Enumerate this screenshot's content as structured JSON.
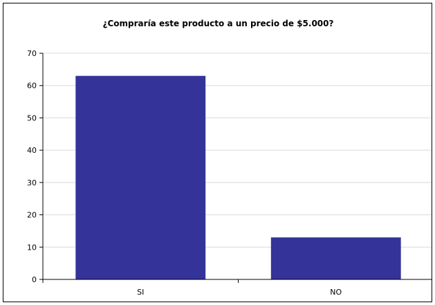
{
  "chart_data": {
    "type": "bar",
    "title": "¿Compraría este producto a un precio de $5.000?",
    "xlabel": "",
    "ylabel": "",
    "categories": [
      "SI",
      "NO"
    ],
    "values": [
      63,
      13
    ],
    "ylim": [
      0,
      70
    ],
    "yticks": [
      "0",
      "10",
      "20",
      "30",
      "40",
      "50",
      "60",
      "70"
    ],
    "grid": true,
    "legend": "none",
    "bar_color": "#333399",
    "grid_color": "#d9d9d9"
  }
}
